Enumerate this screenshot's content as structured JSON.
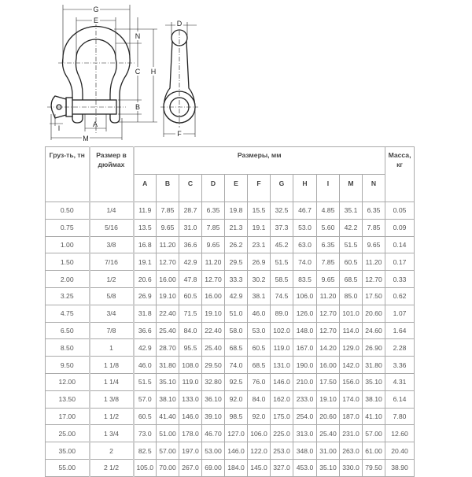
{
  "diagram": {
    "labels": {
      "G": "G",
      "E": "E",
      "N": "N",
      "C": "C",
      "H": "H",
      "B": "B",
      "A": "A",
      "I": "I",
      "M": "M",
      "D": "D",
      "F": "F"
    }
  },
  "table": {
    "headers": {
      "load": "Груз-ть, тн",
      "size_inches": "Размер в дюймах",
      "dimensions": "Размеры, мм",
      "mass": "Масса, кг"
    },
    "dim_columns": [
      "A",
      "B",
      "C",
      "D",
      "E",
      "F",
      "G",
      "H",
      "I",
      "M",
      "N"
    ],
    "rows": [
      [
        "0.50",
        "1/4",
        "11.9",
        "7.85",
        "28.7",
        "6.35",
        "19.8",
        "15.5",
        "32.5",
        "46.7",
        "4.85",
        "35.1",
        "6.35",
        "0.05"
      ],
      [
        "0.75",
        "5/16",
        "13.5",
        "9.65",
        "31.0",
        "7.85",
        "21.3",
        "19.1",
        "37.3",
        "53.0",
        "5.60",
        "42.2",
        "7.85",
        "0.09"
      ],
      [
        "1.00",
        "3/8",
        "16.8",
        "11.20",
        "36.6",
        "9.65",
        "26.2",
        "23.1",
        "45.2",
        "63.0",
        "6.35",
        "51.5",
        "9.65",
        "0.14"
      ],
      [
        "1.50",
        "7/16",
        "19.1",
        "12.70",
        "42.9",
        "11.20",
        "29.5",
        "26.9",
        "51.5",
        "74.0",
        "7.85",
        "60.5",
        "11.20",
        "0.17"
      ],
      [
        "2.00",
        "1/2",
        "20.6",
        "16.00",
        "47.8",
        "12.70",
        "33.3",
        "30.2",
        "58.5",
        "83.5",
        "9.65",
        "68.5",
        "12.70",
        "0.33"
      ],
      [
        "3.25",
        "5/8",
        "26.9",
        "19.10",
        "60.5",
        "16.00",
        "42.9",
        "38.1",
        "74.5",
        "106.0",
        "11.20",
        "85.0",
        "17.50",
        "0.62"
      ],
      [
        "4.75",
        "3/4",
        "31.8",
        "22.40",
        "71.5",
        "19.10",
        "51.0",
        "46.0",
        "89.0",
        "126.0",
        "12.70",
        "101.0",
        "20.60",
        "1.07"
      ],
      [
        "6.50",
        "7/8",
        "36.6",
        "25.40",
        "84.0",
        "22.40",
        "58.0",
        "53.0",
        "102.0",
        "148.0",
        "12.70",
        "114.0",
        "24.60",
        "1.64"
      ],
      [
        "8.50",
        "1",
        "42.9",
        "28.70",
        "95.5",
        "25.40",
        "68.5",
        "60.5",
        "119.0",
        "167.0",
        "14.20",
        "129.0",
        "26.90",
        "2.28"
      ],
      [
        "9.50",
        "1 1/8",
        "46.0",
        "31.80",
        "108.0",
        "29.50",
        "74.0",
        "68.5",
        "131.0",
        "190.0",
        "16.00",
        "142.0",
        "31.80",
        "3.36"
      ],
      [
        "12.00",
        "1 1/4",
        "51.5",
        "35.10",
        "119.0",
        "32.80",
        "92.5",
        "76.0",
        "146.0",
        "210.0",
        "17.50",
        "156.0",
        "35.10",
        "4.31"
      ],
      [
        "13.50",
        "1 3/8",
        "57.0",
        "38.10",
        "133.0",
        "36.10",
        "92.0",
        "84.0",
        "162.0",
        "233.0",
        "19.10",
        "174.0",
        "38.10",
        "6.14"
      ],
      [
        "17.00",
        "1 1/2",
        "60.5",
        "41.40",
        "146.0",
        "39.10",
        "98.5",
        "92.0",
        "175.0",
        "254.0",
        "20.60",
        "187.0",
        "41.10",
        "7.80"
      ],
      [
        "25.00",
        "1 3/4",
        "73.0",
        "51.00",
        "178.0",
        "46.70",
        "127.0",
        "106.0",
        "225.0",
        "313.0",
        "25.40",
        "231.0",
        "57.00",
        "12.60"
      ],
      [
        "35.00",
        "2",
        "82.5",
        "57.00",
        "197.0",
        "53.00",
        "146.0",
        "122.0",
        "253.0",
        "348.0",
        "31.00",
        "263.0",
        "61.00",
        "20.40"
      ],
      [
        "55.00",
        "2 1/2",
        "105.0",
        "70.00",
        "267.0",
        "69.00",
        "184.0",
        "145.0",
        "327.0",
        "453.0",
        "35.10",
        "330.0",
        "79.50",
        "38.90"
      ]
    ]
  }
}
